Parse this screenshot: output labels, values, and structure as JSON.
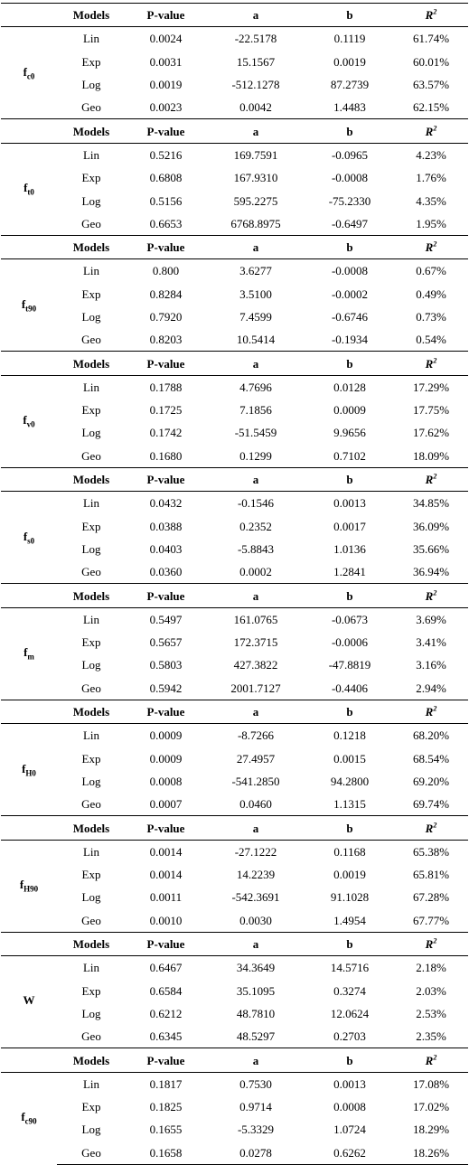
{
  "header": {
    "models": "Models",
    "pvalue": "P-value",
    "a": "a",
    "b": "b",
    "r2_base": "R",
    "r2_sup": "2"
  },
  "groups": [
    {
      "param_base": "f",
      "param_sub": "c0",
      "rows": [
        {
          "model": "Lin",
          "p": "0.0024",
          "a": "-22.5178",
          "b": "0.1119",
          "r2": "61.74%"
        },
        {
          "model": "Exp",
          "p": "0.0031",
          "a": "15.1567",
          "b": "0.0019",
          "r2": "60.01%"
        },
        {
          "model": "Log",
          "p": "0.0019",
          "a": "-512.1278",
          "b": "87.2739",
          "r2": "63.57%"
        },
        {
          "model": "Geo",
          "p": "0.0023",
          "a": "0.0042",
          "b": "1.4483",
          "r2": "62.15%"
        }
      ]
    },
    {
      "param_base": "f",
      "param_sub": "t0",
      "rows": [
        {
          "model": "Lin",
          "p": "0.5216",
          "a": "169.7591",
          "b": "-0.0965",
          "r2": "4.23%"
        },
        {
          "model": "Exp",
          "p": "0.6808",
          "a": "167.9310",
          "b": "-0.0008",
          "r2": "1.76%"
        },
        {
          "model": "Log",
          "p": "0.5156",
          "a": "595.2275",
          "b": "-75.2330",
          "r2": "4.35%"
        },
        {
          "model": "Geo",
          "p": "0.6653",
          "a": "6768.8975",
          "b": "-0.6497",
          "r2": "1.95%"
        }
      ]
    },
    {
      "param_base": "f",
      "param_sub": "t90",
      "rows": [
        {
          "model": "Lin",
          "p": "0.800",
          "a": "3.6277",
          "b": "-0.0008",
          "r2": "0.67%"
        },
        {
          "model": "Exp",
          "p": "0.8284",
          "a": "3.5100",
          "b": "-0.0002",
          "r2": "0.49%"
        },
        {
          "model": "Log",
          "p": "0.7920",
          "a": "7.4599",
          "b": "-0.6746",
          "r2": "0.73%"
        },
        {
          "model": "Geo",
          "p": "0.8203",
          "a": "10.5414",
          "b": "-0.1934",
          "r2": "0.54%"
        }
      ]
    },
    {
      "param_base": "f",
      "param_sub": "v0",
      "rows": [
        {
          "model": "Lin",
          "p": "0.1788",
          "a": "4.7696",
          "b": "0.0128",
          "r2": "17.29%"
        },
        {
          "model": "Exp",
          "p": "0.1725",
          "a": "7.1856",
          "b": "0.0009",
          "r2": "17.75%"
        },
        {
          "model": "Log",
          "p": "0.1742",
          "a": "-51.5459",
          "b": "9.9656",
          "r2": "17.62%"
        },
        {
          "model": "Geo",
          "p": "0.1680",
          "a": "0.1299",
          "b": "0.7102",
          "r2": "18.09%"
        }
      ]
    },
    {
      "param_base": "f",
      "param_sub": "s0",
      "rows": [
        {
          "model": "Lin",
          "p": "0.0432",
          "a": "-0.1546",
          "b": "0.0013",
          "r2": "34.85%"
        },
        {
          "model": "Exp",
          "p": "0.0388",
          "a": "0.2352",
          "b": "0.0017",
          "r2": "36.09%"
        },
        {
          "model": "Log",
          "p": "0.0403",
          "a": "-5.8843",
          "b": "1.0136",
          "r2": "35.66%"
        },
        {
          "model": "Geo",
          "p": "0.0360",
          "a": "0.0002",
          "b": "1.2841",
          "r2": "36.94%"
        }
      ]
    },
    {
      "param_base": "f",
      "param_sub": "m",
      "rows": [
        {
          "model": "Lin",
          "p": "0.5497",
          "a": "161.0765",
          "b": "-0.0673",
          "r2": "3.69%"
        },
        {
          "model": "Exp",
          "p": "0.5657",
          "a": "172.3715",
          "b": "-0.0006",
          "r2": "3.41%"
        },
        {
          "model": "Log",
          "p": "0.5803",
          "a": "427.3822",
          "b": "-47.8819",
          "r2": "3.16%"
        },
        {
          "model": "Geo",
          "p": "0.5942",
          "a": "2001.7127",
          "b": "-0.4406",
          "r2": "2.94%"
        }
      ]
    },
    {
      "param_base": "f",
      "param_sub": "H0",
      "rows": [
        {
          "model": "Lin",
          "p": "0.0009",
          "a": "-8.7266",
          "b": "0.1218",
          "r2": "68.20%"
        },
        {
          "model": "Exp",
          "p": "0.0009",
          "a": "27.4957",
          "b": "0.0015",
          "r2": "68.54%"
        },
        {
          "model": "Log",
          "p": "0.0008",
          "a": "-541.2850",
          "b": "94.2800",
          "r2": "69.20%"
        },
        {
          "model": "Geo",
          "p": "0.0007",
          "a": "0.0460",
          "b": "1.1315",
          "r2": "69.74%"
        }
      ]
    },
    {
      "param_base": "f",
      "param_sub": "H90",
      "rows": [
        {
          "model": "Lin",
          "p": "0.0014",
          "a": "-27.1222",
          "b": "0.1168",
          "r2": "65.38%"
        },
        {
          "model": "Exp",
          "p": "0.0014",
          "a": "14.2239",
          "b": "0.0019",
          "r2": "65.81%"
        },
        {
          "model": "Log",
          "p": "0.0011",
          "a": "-542.3691",
          "b": "91.1028",
          "r2": "67.28%"
        },
        {
          "model": "Geo",
          "p": "0.0010",
          "a": "0.0030",
          "b": "1.4954",
          "r2": "67.77%"
        }
      ]
    },
    {
      "param_base": "W",
      "param_sub": "",
      "rows": [
        {
          "model": "Lin",
          "p": "0.6467",
          "a": "34.3649",
          "b": "14.5716",
          "r2": "2.18%"
        },
        {
          "model": "Exp",
          "p": "0.6584",
          "a": "35.1095",
          "b": "0.3274",
          "r2": "2.03%"
        },
        {
          "model": "Log",
          "p": "0.6212",
          "a": "48.7810",
          "b": "12.0624",
          "r2": "2.53%"
        },
        {
          "model": "Geo",
          "p": "0.6345",
          "a": "48.5297",
          "b": "0.2703",
          "r2": "2.35%"
        }
      ]
    },
    {
      "param_base": "f",
      "param_sub": "c90",
      "rows": [
        {
          "model": "Lin",
          "p": "0.1817",
          "a": "0.7530",
          "b": "0.0013",
          "r2": "17.08%"
        },
        {
          "model": "Exp",
          "p": "0.1825",
          "a": "0.9714",
          "b": "0.0008",
          "r2": "17.02%"
        },
        {
          "model": "Log",
          "p": "0.1655",
          "a": "-5.3329",
          "b": "1.0724",
          "r2": "18.29%"
        },
        {
          "model": "Geo",
          "p": "0.1658",
          "a": "0.0278",
          "b": "0.6262",
          "r2": "18.26%"
        }
      ]
    }
  ]
}
